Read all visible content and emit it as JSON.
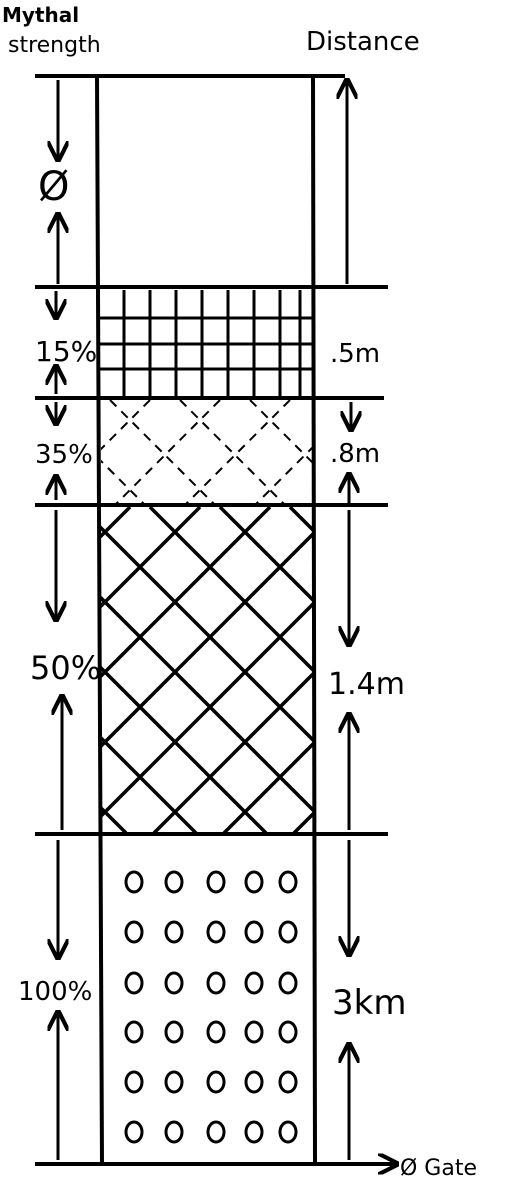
{
  "headers": {
    "left_line1": "Mythal",
    "left_line2": "strength",
    "right": "Distance"
  },
  "bands": [
    {
      "id": "empty",
      "strength": "Ø",
      "distance": "",
      "pattern": "none"
    },
    {
      "id": "grid",
      "strength": "15%",
      "distance": ".5m",
      "pattern": "grid"
    },
    {
      "id": "dashed",
      "strength": "35%",
      "distance": ".8m",
      "pattern": "dashed-crosshatch"
    },
    {
      "id": "cross",
      "strength": "50%",
      "distance": "1.4m",
      "pattern": "crosshatch"
    },
    {
      "id": "dots",
      "strength": "100%",
      "distance": "3km",
      "pattern": "circles"
    }
  ],
  "footer": {
    "label": "Ø Gate"
  },
  "colors": {
    "ink": "#000000",
    "paper": "#ffffff"
  }
}
